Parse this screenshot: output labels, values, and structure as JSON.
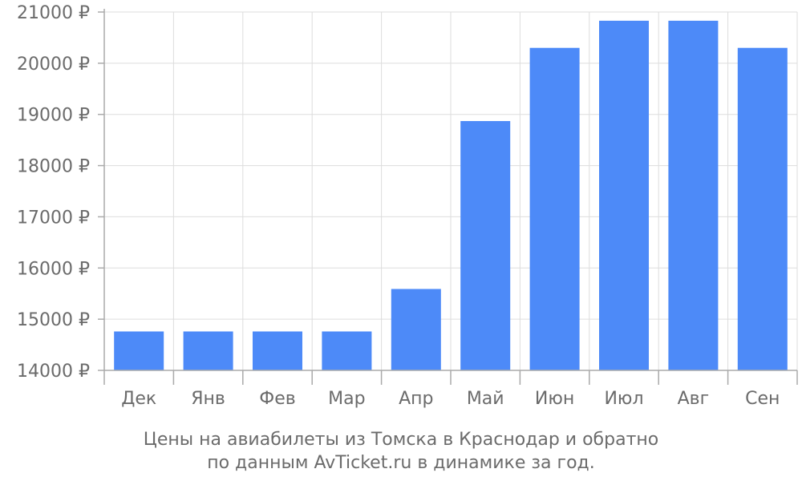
{
  "chart_data": {
    "type": "bar",
    "categories": [
      "Дек",
      "Янв",
      "Фев",
      "Мар",
      "Апр",
      "Май",
      "Июн",
      "Июл",
      "Авг",
      "Сен"
    ],
    "values": [
      14760,
      14760,
      14760,
      14760,
      15590,
      18870,
      20300,
      20830,
      20830,
      20300
    ],
    "ylim": [
      14000,
      21000
    ],
    "yticks": [
      14000,
      15000,
      16000,
      17000,
      18000,
      19000,
      20000,
      21000
    ],
    "ytick_labels": [
      "14000 ₽",
      "15000 ₽",
      "16000 ₽",
      "17000 ₽",
      "18000 ₽",
      "19000 ₽",
      "20000 ₽",
      "21000 ₽"
    ],
    "grid": true,
    "bar_color": "#4d8af8",
    "caption": {
      "line1": "Цены на авиабилеты из Томска в Краснодар и обратно",
      "line2": "по данным AvTicket.ru в динамике за год."
    }
  },
  "colors": {
    "bar": "#4d8af8",
    "grid": "#dddddd",
    "axis": "#aaaaaa",
    "text": "#6b6b6b"
  }
}
